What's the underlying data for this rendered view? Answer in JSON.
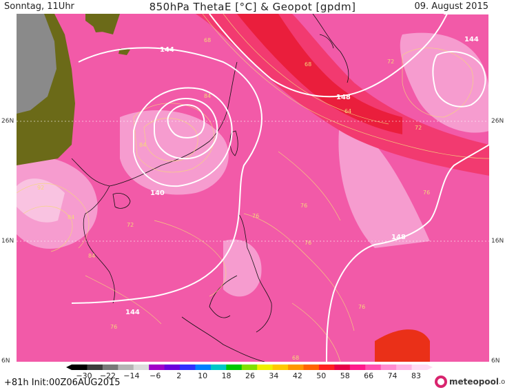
{
  "header": {
    "left": "Sonntag, 11Uhr",
    "center": "850hPa ThetaE [°C] & Geopot [gpdm]",
    "right": "09. August 2015"
  },
  "latitude_labels": [
    "26N",
    "16N",
    "6N"
  ],
  "isohypse_labels": [
    "144",
    "144",
    "148",
    "140",
    "148",
    "144"
  ],
  "thetae_contour_labels": [
    "68",
    "68",
    "64",
    "72",
    "72",
    "84",
    "84",
    "92",
    "84",
    "72",
    "84",
    "76",
    "76",
    "76",
    "76",
    "76",
    "68",
    "76"
  ],
  "legend": {
    "ticks": [
      "−30",
      "−22",
      "−14",
      "−6",
      "2",
      "10",
      "18",
      "26",
      "34",
      "42",
      "50",
      "58",
      "66",
      "74",
      "83"
    ],
    "colors": [
      "#000000",
      "#3c3c3c",
      "#787878",
      "#b4b4b4",
      "#dcdcdc",
      "#a000c8",
      "#6a00dc",
      "#3030ff",
      "#0080ff",
      "#00c8c8",
      "#00c800",
      "#80e000",
      "#f0f000",
      "#ffc800",
      "#ff9600",
      "#ff6400",
      "#ff2020",
      "#e60046",
      "#ff1a8c",
      "#ff50b0",
      "#ff8cd2",
      "#ffb4e4",
      "#ffdcf4"
    ]
  },
  "footer": {
    "init": "+81h Init:00Z06AUG2015",
    "logo_text": "meteopool",
    "logo_tld": ".org"
  },
  "colors": {
    "map_base": "#f25aa8",
    "warm_band": "#ee2a58",
    "pale_pink": "#f7a8d6",
    "land_olive": "#6b6a18",
    "land_grey": "#8a8a8a"
  }
}
